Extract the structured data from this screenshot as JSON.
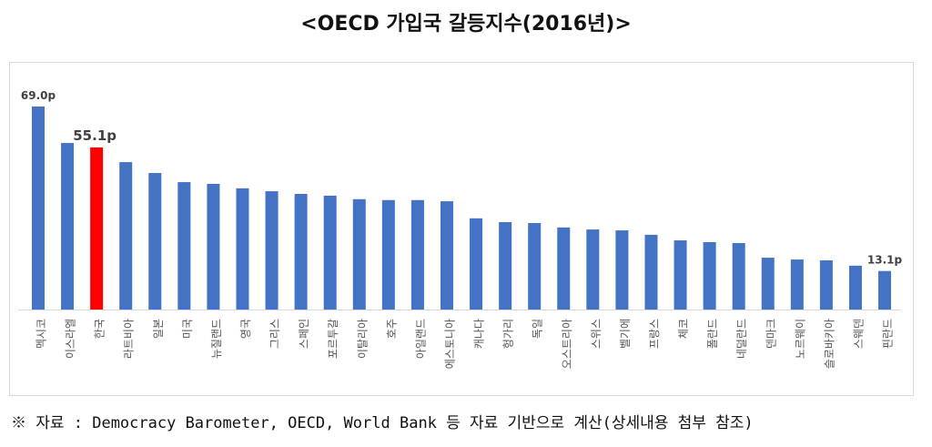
{
  "title": "<OECD 가입국 갈등지수(2016년)>",
  "footer": "※ 자료 : Democracy Barometer, OECD, World Bank 등 자료 기반으로 계산(상세내용 첨부 참조)",
  "colors": {
    "bar": "#4472c4",
    "highlight": "#ff0000"
  },
  "chart_data": {
    "type": "bar",
    "title": "<OECD 가입국 갈등지수(2016년)>",
    "xlabel": "",
    "ylabel": "",
    "ylim": [
      0,
      69
    ],
    "grid": false,
    "highlight": "한국",
    "categories": [
      "멕시코",
      "이스라엘",
      "한국",
      "라트비아",
      "일본",
      "미국",
      "뉴질랜드",
      "영국",
      "그리스",
      "스페인",
      "포르투갈",
      "이탈리아",
      "호주",
      "아일랜드",
      "에스토니아",
      "캐나다",
      "헝가리",
      "독일",
      "오스트리아",
      "스위스",
      "벨기에",
      "프랑스",
      "체코",
      "폴란드",
      "네덜란드",
      "덴마크",
      "노르웨이",
      "슬로바키아",
      "스웨덴",
      "핀란드"
    ],
    "values": [
      69.0,
      56.6,
      55.1,
      50.1,
      46.4,
      43.3,
      42.7,
      41.2,
      40.2,
      39.3,
      38.7,
      37.5,
      37.2,
      37.2,
      36.8,
      31.0,
      29.7,
      29.4,
      27.9,
      27.2,
      26.9,
      25.4,
      23.5,
      22.9,
      22.6,
      17.6,
      17.0,
      16.7,
      14.9,
      13.1
    ],
    "data_labels": [
      {
        "category": "멕시코",
        "text": "69.0p"
      },
      {
        "category": "한국",
        "text": "55.1p"
      },
      {
        "category": "핀란드",
        "text": "13.1p"
      }
    ]
  }
}
